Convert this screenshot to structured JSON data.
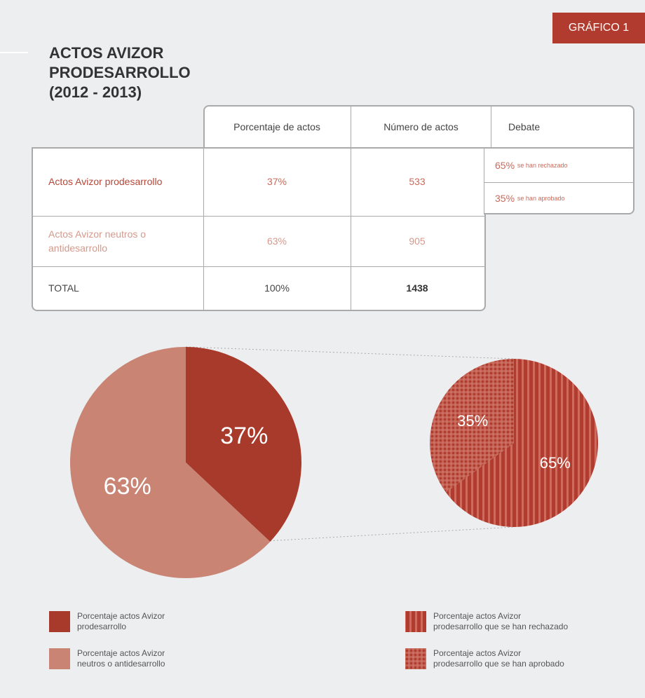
{
  "badge": "GRÁFICO 1",
  "title": [
    "ACTOS AVIZOR",
    "PRODESARROLLO",
    "(2012 - 2013)"
  ],
  "table": {
    "headers": [
      "Porcentaje de actos",
      "Número de actos",
      "Debate"
    ],
    "rows": [
      [
        "Actos Avizor prodesarrollo",
        "37%",
        "533"
      ],
      [
        "Actos Avizor neutros o antidesarrollo",
        "63%",
        "905"
      ],
      [
        "TOTAL",
        "100%",
        "1438"
      ]
    ],
    "debate": [
      {
        "pct": "65%",
        "text": "se han rechazado"
      },
      {
        "pct": "35%",
        "text": "se han aprobado"
      }
    ]
  },
  "chart_data": [
    {
      "type": "pie",
      "categories": [
        "Porcentaje actos Avizor prodesarrollo",
        "Porcentaje actos Avizor neutros o antidesarrollo"
      ],
      "values": [
        37,
        63
      ],
      "value_labels": [
        "37%",
        "63%"
      ],
      "colors": [
        "#a83a2c",
        "#c98474"
      ]
    },
    {
      "type": "pie",
      "categories": [
        "Porcentaje actos Avizor prodesarrollo que se han rechazado",
        "Porcentaje actos Avizor prodesarrollo que se han aprobado"
      ],
      "values": [
        65,
        35
      ],
      "value_labels": [
        "65%",
        "35%"
      ],
      "colors": [
        "#b13b2e",
        "#b13b2e"
      ],
      "patterns": [
        "stripes",
        "checks"
      ]
    }
  ]
}
